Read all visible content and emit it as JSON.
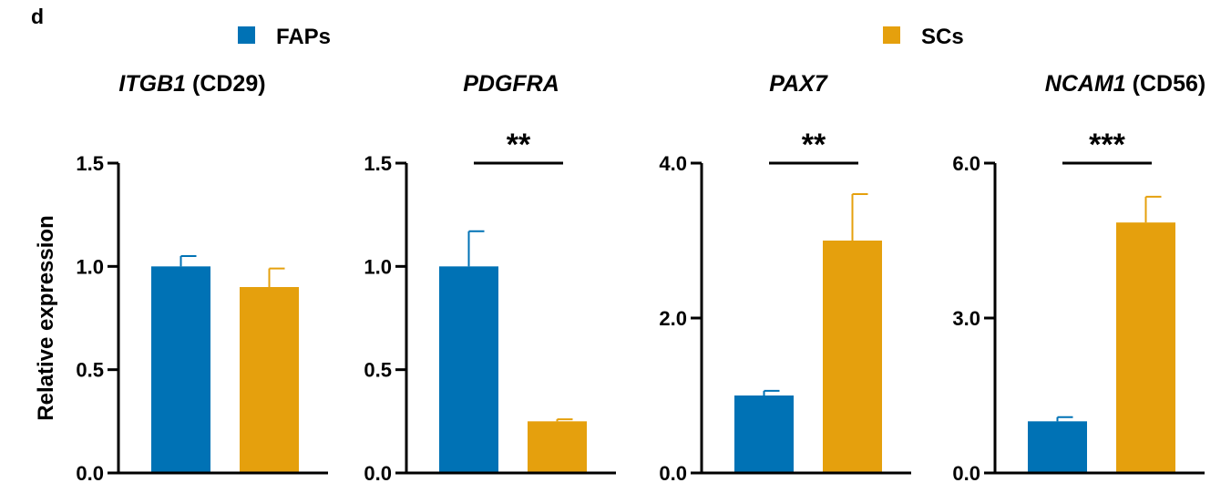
{
  "panel_label": "d",
  "legend": [
    {
      "label": "FAPs",
      "color": "#0072b5"
    },
    {
      "label": "SCs",
      "color": "#e5a00d"
    }
  ],
  "ylabel": "Relative expression",
  "chart_data": [
    {
      "type": "bar",
      "title": {
        "gene": "ITGB1",
        "suffix": " (CD29)"
      },
      "categories": [
        "FAPs",
        "SCs"
      ],
      "values": [
        1.0,
        0.9
      ],
      "errors": [
        0.05,
        0.09
      ],
      "ylim": [
        0,
        1.5
      ],
      "yticks": [
        "0.0",
        "0.5",
        "1.0",
        "1.5"
      ],
      "significance": ""
    },
    {
      "type": "bar",
      "title": {
        "gene": "PDGFRA",
        "suffix": ""
      },
      "categories": [
        "FAPs",
        "SCs"
      ],
      "values": [
        1.0,
        0.25
      ],
      "errors": [
        0.17,
        0.01
      ],
      "ylim": [
        0,
        1.5
      ],
      "yticks": [
        "0.0",
        "0.5",
        "1.0",
        "1.5"
      ],
      "significance": "**"
    },
    {
      "type": "bar",
      "title": {
        "gene": "PAX7",
        "suffix": ""
      },
      "categories": [
        "FAPs",
        "SCs"
      ],
      "values": [
        1.0,
        3.0
      ],
      "errors": [
        0.06,
        0.6
      ],
      "ylim": [
        0,
        4.0
      ],
      "yticks": [
        "0.0",
        "2.0",
        "4.0"
      ],
      "significance": "**"
    },
    {
      "type": "bar",
      "title": {
        "gene": "NCAM1",
        "suffix": " (CD56)"
      },
      "categories": [
        "FAPs",
        "SCs"
      ],
      "values": [
        1.0,
        4.85
      ],
      "errors": [
        0.08,
        0.5
      ],
      "ylim": [
        0,
        6.0
      ],
      "yticks": [
        "0.0",
        "3.0",
        "6.0"
      ],
      "significance": "***"
    }
  ]
}
